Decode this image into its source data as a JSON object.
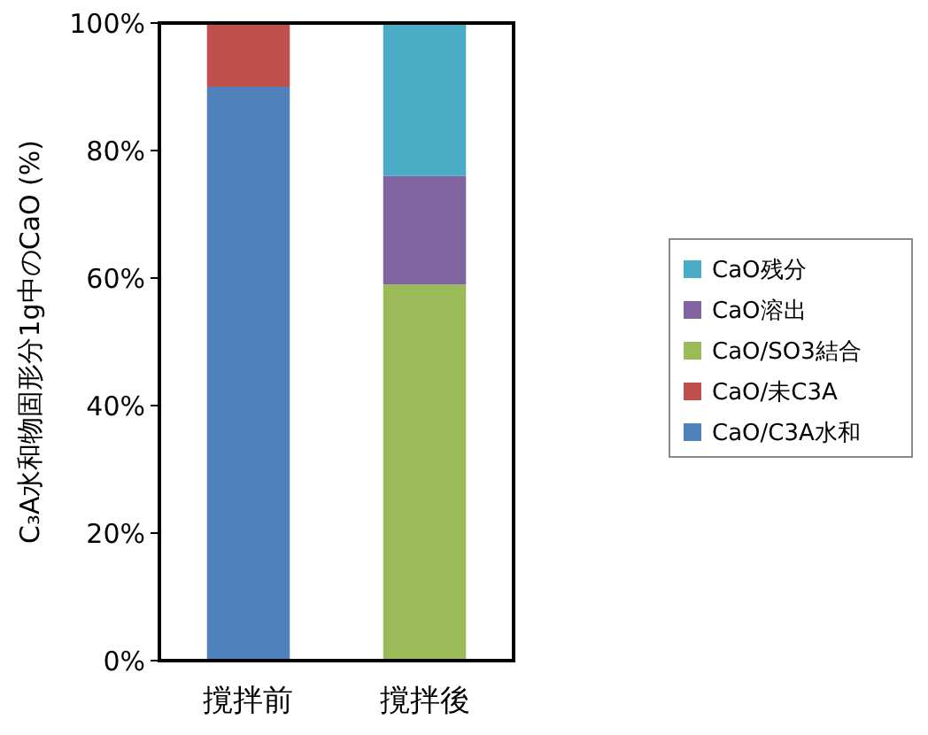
{
  "chart_data": {
    "type": "bar",
    "stacked": true,
    "ylabel": "C₃A水和物固形分1g中のCaO (%)",
    "categories": [
      "撹拌前",
      "撹拌後"
    ],
    "series": [
      {
        "name": "CaO/C3A水和",
        "color": "#4f81bd",
        "values": [
          90,
          0
        ]
      },
      {
        "name": "CaO/未C3A",
        "color": "#c0504d",
        "values": [
          10,
          0
        ]
      },
      {
        "name": "CaO/SO3結合",
        "color": "#9bbb59",
        "values": [
          0,
          59
        ]
      },
      {
        "name": "CaO溶出",
        "color": "#8064a2",
        "values": [
          0,
          17
        ]
      },
      {
        "name": "CaO残分",
        "color": "#4bacc6",
        "values": [
          0,
          24
        ]
      }
    ],
    "ylim": [
      0,
      100
    ],
    "yticks": [
      {
        "value": 0,
        "label": "0%"
      },
      {
        "value": 20,
        "label": "20%"
      },
      {
        "value": 40,
        "label": "40%"
      },
      {
        "value": 60,
        "label": "60%"
      },
      {
        "value": 80,
        "label": "80%"
      },
      {
        "value": 100,
        "label": "100%"
      }
    ],
    "grid": false,
    "legend": "right"
  }
}
